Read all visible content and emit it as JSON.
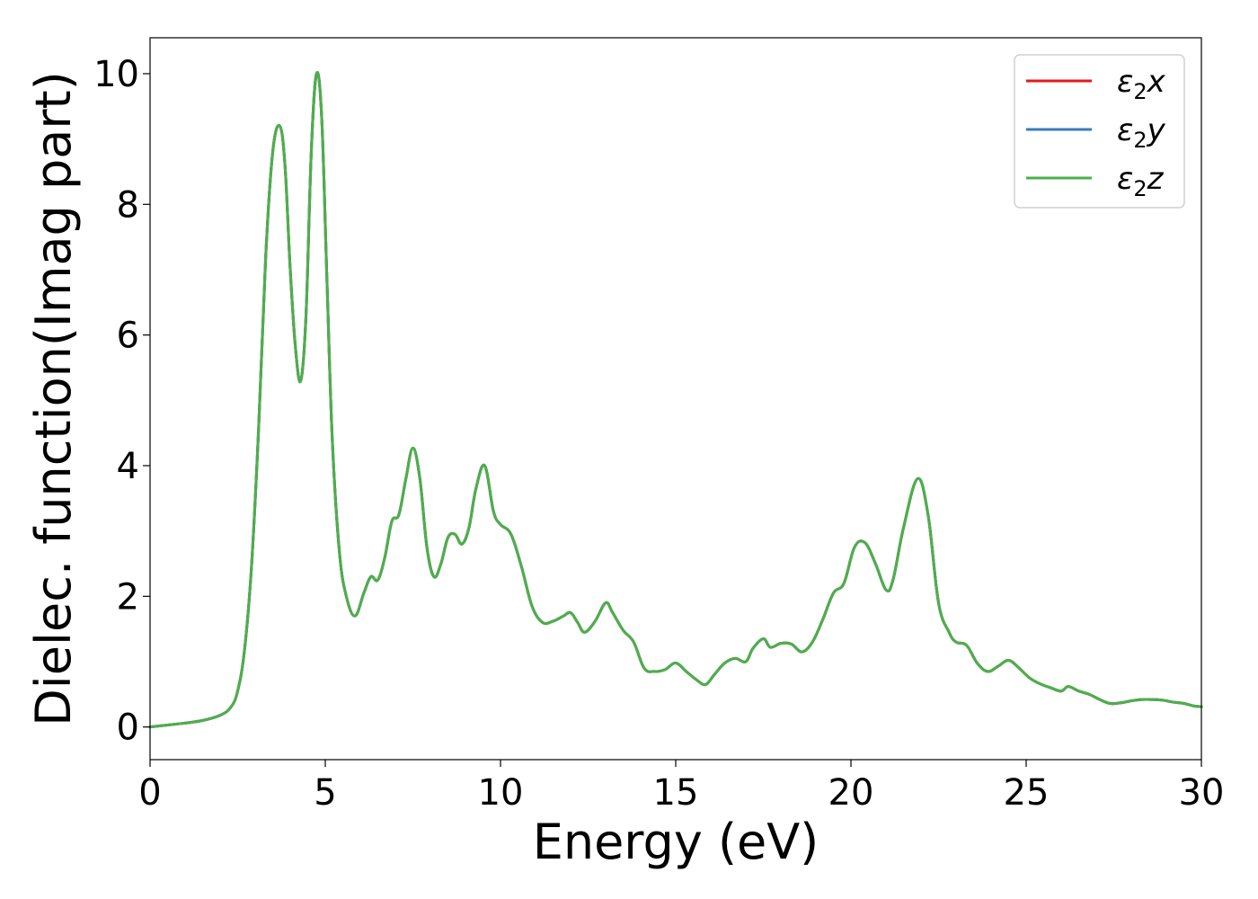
{
  "chart_data": {
    "type": "line",
    "xlabel": "Energy (eV)",
    "ylabel": "Dielec. function(Imag part)",
    "xlim": [
      0,
      30
    ],
    "ylim": [
      -0.5,
      10.55
    ],
    "xticks": [
      0,
      5,
      10,
      15,
      20,
      25,
      30
    ],
    "yticks": [
      0,
      2,
      4,
      6,
      8,
      10
    ],
    "xtick_labels": [
      "0",
      "5",
      "10",
      "15",
      "20",
      "25",
      "30"
    ],
    "ytick_labels": [
      "0",
      "2",
      "4",
      "6",
      "8",
      "10"
    ],
    "grid": false,
    "legend_position": "top-right",
    "legend": [
      {
        "label": "ε₂x",
        "base": "ε",
        "sub": "2",
        "suffix": "x",
        "color": "#e41a1c"
      },
      {
        "label": "ε₂y",
        "base": "ε",
        "sub": "2",
        "suffix": "y",
        "color": "#377eb8"
      },
      {
        "label": "ε₂z",
        "base": "ε",
        "sub": "2",
        "suffix": "z",
        "color": "#4daf4a"
      }
    ],
    "x": [
      0,
      0.5,
      1.0,
      1.5,
      2.0,
      2.3,
      2.5,
      2.7,
      2.9,
      3.1,
      3.3,
      3.5,
      3.7,
      3.85,
      4.0,
      4.15,
      4.3,
      4.45,
      4.6,
      4.75,
      4.9,
      5.05,
      5.2,
      5.4,
      5.6,
      5.85,
      6.1,
      6.3,
      6.5,
      6.7,
      6.9,
      7.1,
      7.3,
      7.5,
      7.7,
      7.9,
      8.1,
      8.3,
      8.5,
      8.7,
      8.9,
      9.1,
      9.3,
      9.55,
      9.8,
      10.0,
      10.3,
      10.6,
      10.9,
      11.2,
      11.5,
      11.8,
      12.0,
      12.2,
      12.4,
      12.7,
      13.0,
      13.2,
      13.5,
      13.8,
      14.1,
      14.4,
      14.7,
      15.0,
      15.3,
      15.6,
      15.85,
      16.1,
      16.4,
      16.7,
      17.0,
      17.2,
      17.5,
      17.7,
      18.0,
      18.3,
      18.6,
      18.9,
      19.2,
      19.5,
      19.8,
      20.1,
      20.4,
      20.7,
      21.0,
      21.2,
      21.5,
      21.9,
      22.2,
      22.5,
      22.8,
      23.0,
      23.3,
      23.6,
      23.9,
      24.2,
      24.5,
      24.8,
      25.1,
      25.4,
      25.7,
      26.0,
      26.2,
      26.5,
      26.8,
      27.1,
      27.4,
      27.7,
      28.0,
      28.3,
      28.6,
      28.9,
      29.2,
      29.5,
      29.8,
      30.0
    ],
    "series": [
      {
        "name": "ε₂x",
        "color": "#e41a1c",
        "values": [
          0.0,
          0.03,
          0.06,
          0.1,
          0.18,
          0.3,
          0.55,
          1.2,
          2.5,
          4.6,
          7.2,
          8.8,
          9.2,
          8.6,
          7.0,
          5.8,
          5.3,
          6.3,
          8.8,
          10.0,
          9.3,
          6.8,
          4.4,
          2.7,
          2.0,
          1.7,
          2.05,
          2.3,
          2.25,
          2.6,
          3.15,
          3.25,
          3.8,
          4.27,
          3.8,
          2.75,
          2.3,
          2.5,
          2.9,
          2.95,
          2.8,
          3.05,
          3.65,
          4.0,
          3.3,
          3.1,
          2.95,
          2.45,
          1.85,
          1.6,
          1.62,
          1.7,
          1.75,
          1.6,
          1.45,
          1.62,
          1.9,
          1.75,
          1.48,
          1.3,
          0.9,
          0.85,
          0.88,
          0.98,
          0.85,
          0.72,
          0.65,
          0.8,
          0.98,
          1.05,
          1.0,
          1.2,
          1.35,
          1.22,
          1.28,
          1.27,
          1.15,
          1.3,
          1.65,
          2.05,
          2.2,
          2.75,
          2.82,
          2.5,
          2.1,
          2.25,
          3.05,
          3.8,
          3.25,
          1.9,
          1.45,
          1.3,
          1.25,
          0.98,
          0.85,
          0.93,
          1.02,
          0.9,
          0.75,
          0.66,
          0.6,
          0.55,
          0.62,
          0.55,
          0.5,
          0.42,
          0.36,
          0.37,
          0.4,
          0.42,
          0.42,
          0.41,
          0.38,
          0.36,
          0.32,
          0.31
        ]
      },
      {
        "name": "ε₂y",
        "color": "#377eb8",
        "values": [
          0.0,
          0.03,
          0.06,
          0.1,
          0.18,
          0.3,
          0.55,
          1.2,
          2.5,
          4.6,
          7.2,
          8.8,
          9.2,
          8.6,
          7.0,
          5.8,
          5.3,
          6.3,
          8.8,
          10.0,
          9.3,
          6.8,
          4.4,
          2.7,
          2.0,
          1.7,
          2.05,
          2.3,
          2.25,
          2.6,
          3.15,
          3.25,
          3.8,
          4.27,
          3.8,
          2.75,
          2.3,
          2.5,
          2.9,
          2.95,
          2.8,
          3.05,
          3.65,
          4.0,
          3.3,
          3.1,
          2.95,
          2.45,
          1.85,
          1.6,
          1.62,
          1.7,
          1.75,
          1.6,
          1.45,
          1.62,
          1.9,
          1.75,
          1.48,
          1.3,
          0.9,
          0.85,
          0.88,
          0.98,
          0.85,
          0.72,
          0.65,
          0.8,
          0.98,
          1.05,
          1.0,
          1.2,
          1.35,
          1.22,
          1.28,
          1.27,
          1.15,
          1.3,
          1.65,
          2.05,
          2.2,
          2.75,
          2.82,
          2.5,
          2.1,
          2.25,
          3.05,
          3.8,
          3.25,
          1.9,
          1.45,
          1.3,
          1.25,
          0.98,
          0.85,
          0.93,
          1.02,
          0.9,
          0.75,
          0.66,
          0.6,
          0.55,
          0.62,
          0.55,
          0.5,
          0.42,
          0.36,
          0.37,
          0.4,
          0.42,
          0.42,
          0.41,
          0.38,
          0.36,
          0.32,
          0.31
        ]
      },
      {
        "name": "ε₂z",
        "color": "#4daf4a",
        "values": [
          0.0,
          0.03,
          0.06,
          0.1,
          0.18,
          0.3,
          0.55,
          1.2,
          2.5,
          4.6,
          7.2,
          8.8,
          9.2,
          8.6,
          7.0,
          5.8,
          5.3,
          6.3,
          8.8,
          10.0,
          9.3,
          6.8,
          4.4,
          2.7,
          2.0,
          1.7,
          2.05,
          2.3,
          2.25,
          2.6,
          3.15,
          3.25,
          3.8,
          4.27,
          3.8,
          2.75,
          2.3,
          2.5,
          2.9,
          2.95,
          2.8,
          3.05,
          3.65,
          4.0,
          3.3,
          3.1,
          2.95,
          2.45,
          1.85,
          1.6,
          1.62,
          1.7,
          1.75,
          1.6,
          1.45,
          1.62,
          1.9,
          1.75,
          1.48,
          1.3,
          0.9,
          0.85,
          0.88,
          0.98,
          0.85,
          0.72,
          0.65,
          0.8,
          0.98,
          1.05,
          1.0,
          1.2,
          1.35,
          1.22,
          1.28,
          1.27,
          1.15,
          1.3,
          1.65,
          2.05,
          2.2,
          2.75,
          2.82,
          2.5,
          2.1,
          2.25,
          3.05,
          3.8,
          3.25,
          1.9,
          1.45,
          1.3,
          1.25,
          0.98,
          0.85,
          0.93,
          1.02,
          0.9,
          0.75,
          0.66,
          0.6,
          0.55,
          0.62,
          0.55,
          0.5,
          0.42,
          0.36,
          0.37,
          0.4,
          0.42,
          0.42,
          0.41,
          0.38,
          0.36,
          0.32,
          0.31
        ]
      }
    ]
  }
}
